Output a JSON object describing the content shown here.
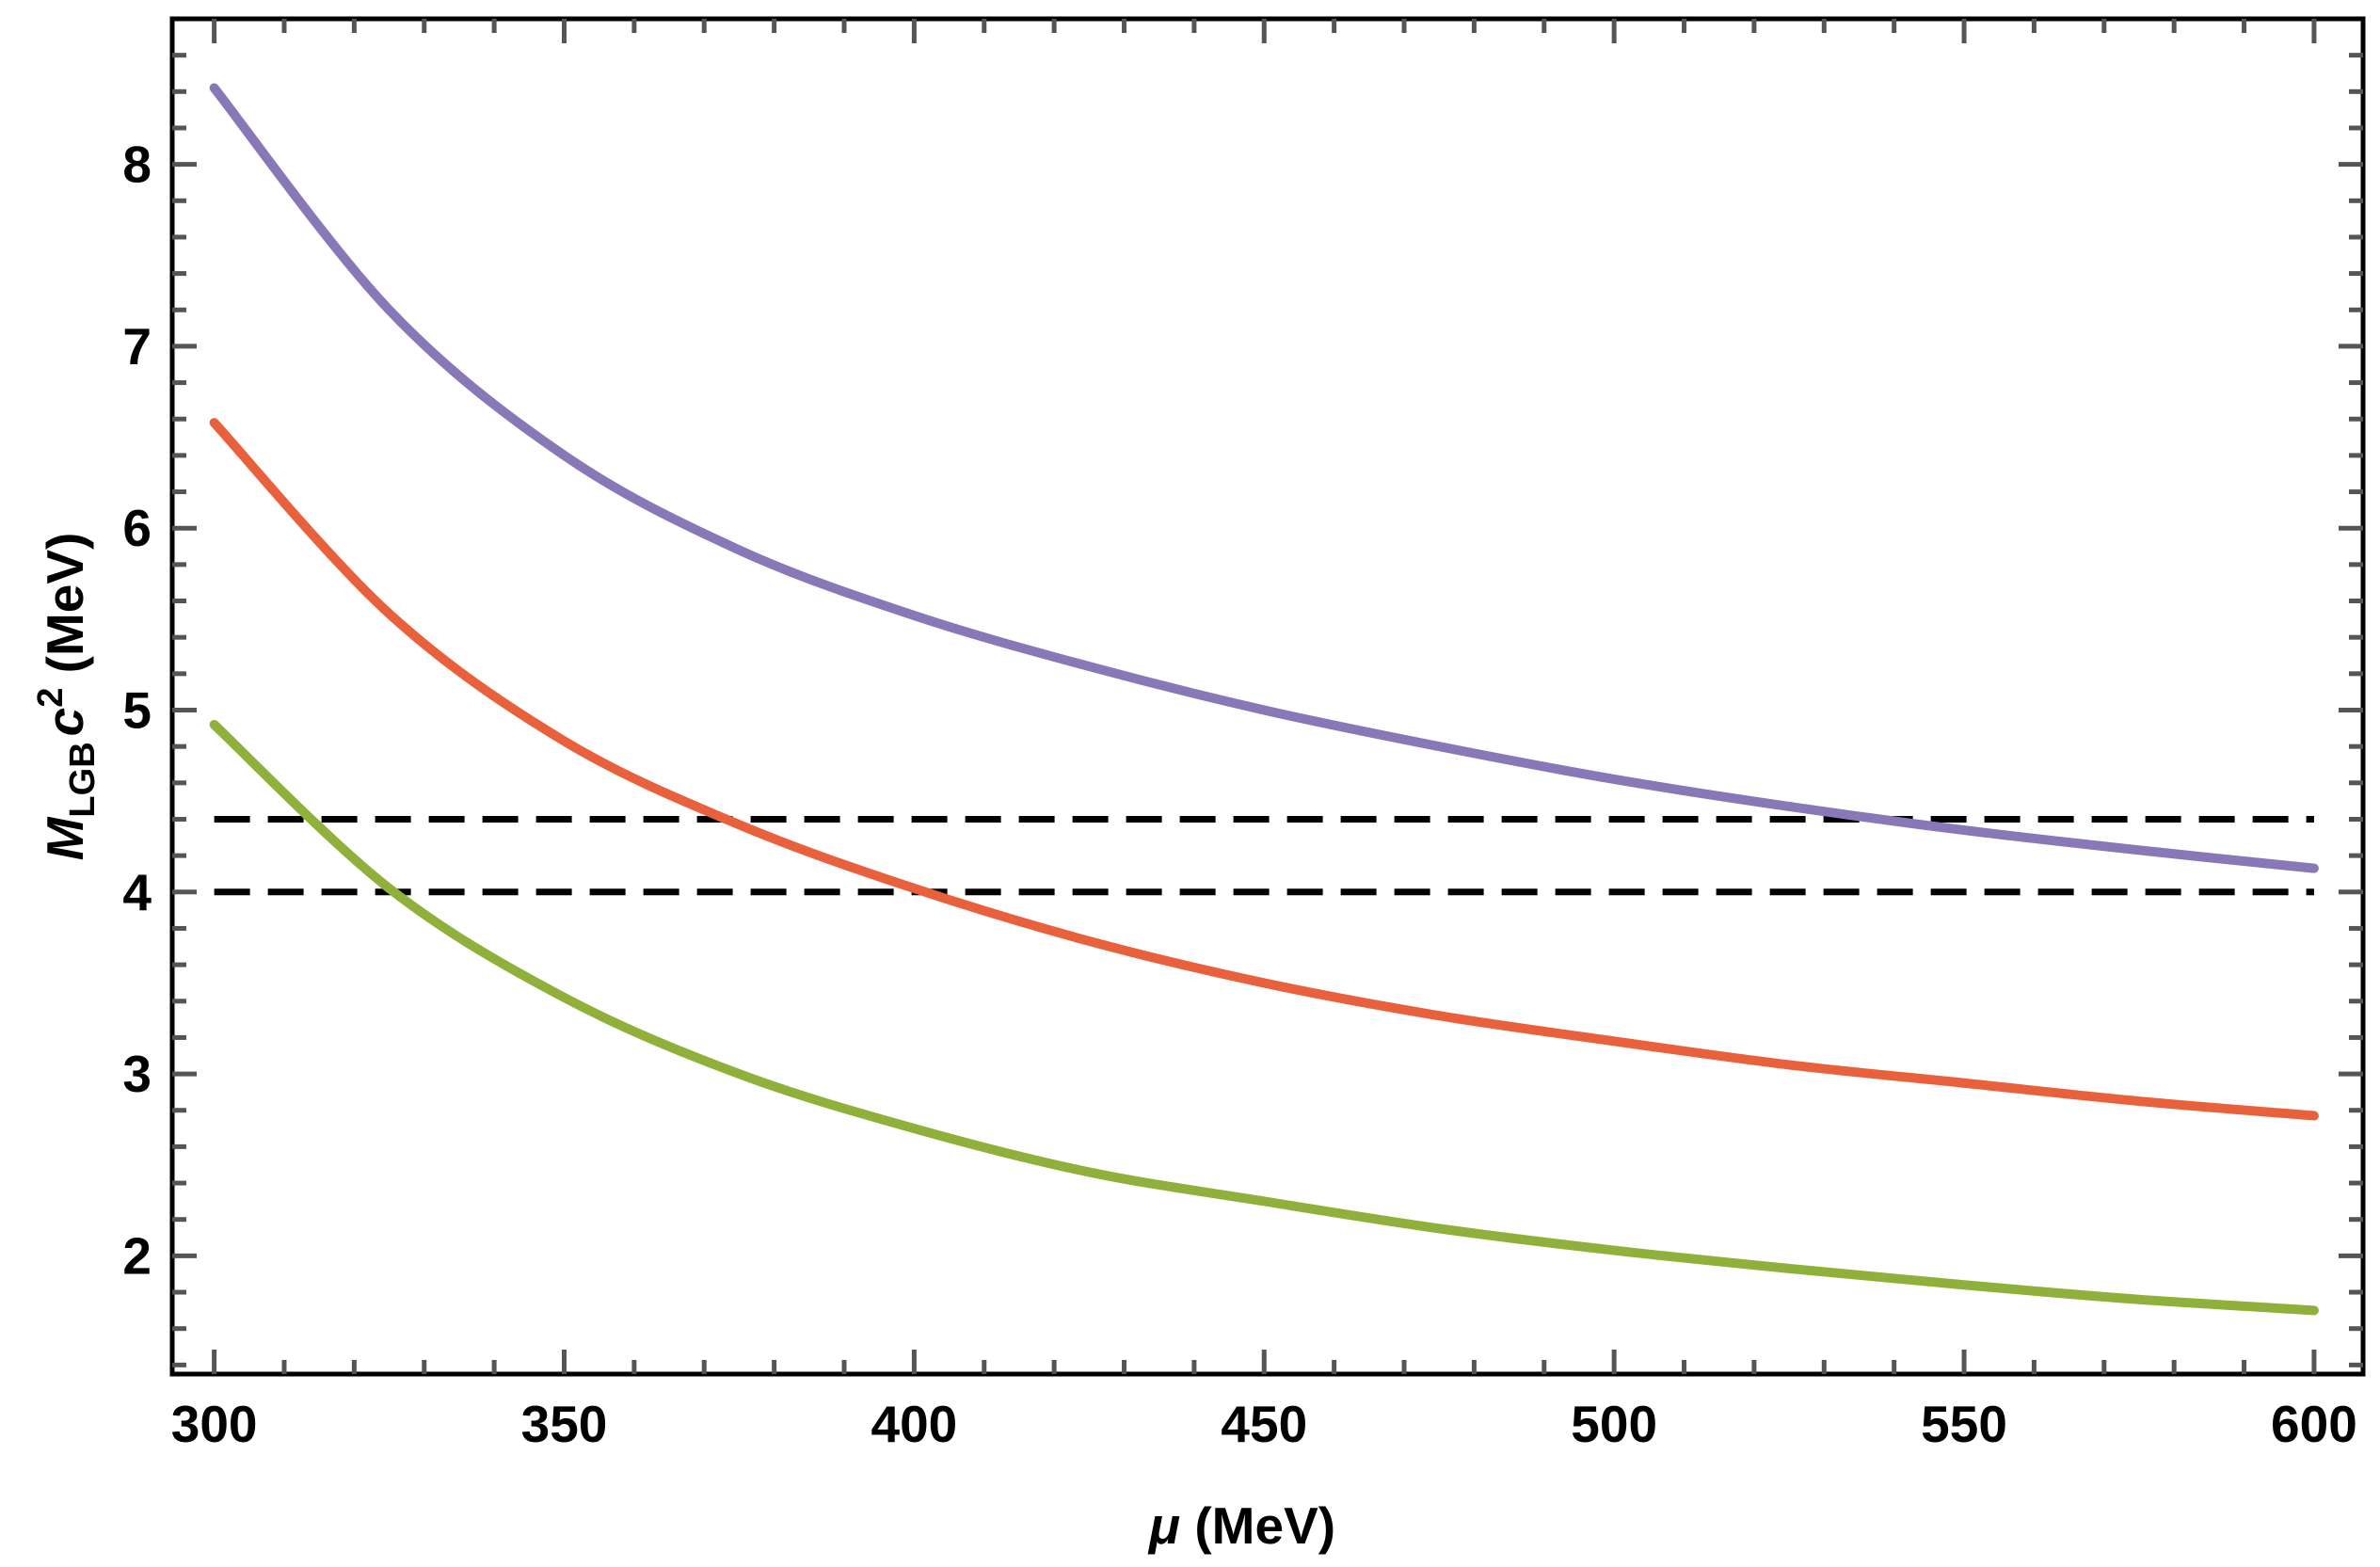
{
  "chart_data": {
    "type": "line",
    "title": "",
    "xlabel": {
      "symbol": "μ",
      "unit": "(MeV)"
    },
    "ylabel": {
      "symbol": "M",
      "subscript": "LGB",
      "var": "c",
      "power": "2",
      "unit": "(MeV)"
    },
    "xlim": [
      294,
      607
    ],
    "ylim": [
      1.35,
      8.8
    ],
    "xticks": [
      300,
      350,
      400,
      450,
      500,
      550,
      600
    ],
    "yticks": [
      2,
      3,
      4,
      5,
      6,
      7,
      8
    ],
    "xtick_labels": [
      "300",
      "350",
      "400",
      "450",
      "500",
      "550",
      "600"
    ],
    "ytick_labels": [
      "2",
      "3",
      "4",
      "5",
      "6",
      "7",
      "8"
    ],
    "x": [
      300,
      325,
      350,
      375,
      400,
      425,
      450,
      475,
      500,
      525,
      550,
      575,
      600
    ],
    "series": [
      {
        "name": "purple curve",
        "color": "#8878b8",
        "values": [
          8.42,
          7.2,
          6.4,
          5.88,
          5.52,
          5.24,
          5.0,
          4.8,
          4.62,
          4.47,
          4.34,
          4.23,
          4.13
        ]
      },
      {
        "name": "orange curve",
        "color": "#e8613c",
        "values": [
          6.58,
          5.53,
          4.83,
          4.37,
          4.02,
          3.73,
          3.5,
          3.32,
          3.18,
          3.05,
          2.95,
          2.85,
          2.77
        ]
      },
      {
        "name": "green curve",
        "color": "#8fb03a",
        "values": [
          4.92,
          4.02,
          3.42,
          3.0,
          2.7,
          2.46,
          2.3,
          2.15,
          2.03,
          1.93,
          1.84,
          1.76,
          1.7
        ]
      }
    ],
    "reference_lines": [
      {
        "name": "upper dashed line",
        "y": 4.4,
        "style": "dashed",
        "color": "#000000"
      },
      {
        "name": "lower dashed line",
        "y": 4.0,
        "style": "dashed",
        "color": "#000000"
      }
    ],
    "grid": false,
    "legend": "none"
  }
}
